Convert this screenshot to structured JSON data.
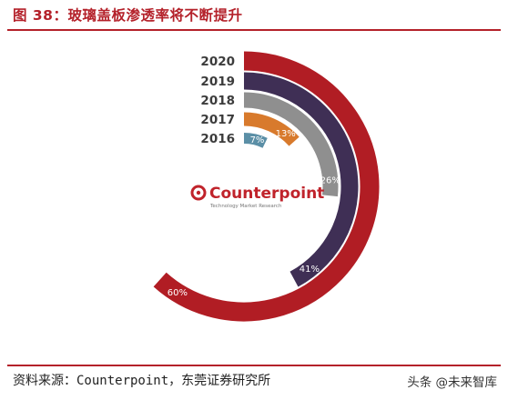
{
  "header": {
    "title": "图 38：玻璃盖板渗透率将不断提升"
  },
  "footer": {
    "source": "资料来源：Counterpoint，东莞证券研究所",
    "watermark": "头条 @未来智库"
  },
  "chart_data": {
    "type": "radial-bar",
    "categories": [
      "2020",
      "2019",
      "2018",
      "2017",
      "2016"
    ],
    "values": [
      60,
      41,
      26,
      13,
      7
    ],
    "value_labels": [
      "60%",
      "41%",
      "26%",
      "13%",
      "7%"
    ],
    "colors": [
      "#b11d24",
      "#3f2f55",
      "#8f8f8f",
      "#d87a2c",
      "#5b8fa6"
    ],
    "logo": {
      "brand": "Counterpoint",
      "tagline": "Technology Market Research"
    }
  }
}
